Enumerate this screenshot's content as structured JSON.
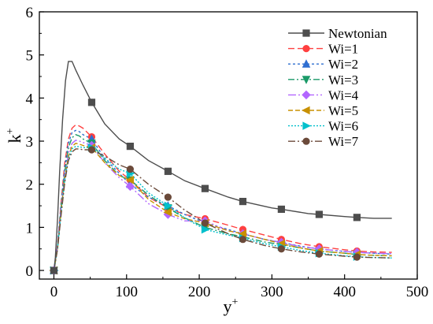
{
  "chart_data": {
    "type": "line",
    "title": "",
    "xlabel": "y",
    "xlabel_sup": "+",
    "ylabel": "k",
    "ylabel_sup": "+",
    "xlim": [
      -20,
      500
    ],
    "ylim": [
      -0.2,
      6
    ],
    "xticks": [
      0,
      100,
      200,
      300,
      400,
      500
    ],
    "yticks": [
      0,
      1,
      2,
      3,
      4,
      5,
      6
    ],
    "xtick_labels": [
      "0",
      "100",
      "200",
      "300",
      "400",
      "500"
    ],
    "ytick_labels": [
      "0",
      "1",
      "2",
      "3",
      "4",
      "5",
      "6"
    ],
    "grid": false,
    "legend_position": "top-right",
    "series": [
      {
        "name": "Newtonian",
        "color": "#4d4d4d",
        "dash": "solid",
        "marker": "square",
        "x": [
          0,
          2,
          5,
          8,
          12,
          16,
          20,
          25,
          30,
          40,
          52,
          70,
          90,
          105,
          130,
          157,
          180,
          208,
          240,
          260,
          300,
          313,
          350,
          365,
          400,
          417,
          440,
          465
        ],
        "y": [
          0,
          0.3,
          1.2,
          2.3,
          3.5,
          4.4,
          4.85,
          4.85,
          4.65,
          4.3,
          3.9,
          3.4,
          3.05,
          2.88,
          2.55,
          2.3,
          2.08,
          1.9,
          1.7,
          1.6,
          1.45,
          1.42,
          1.32,
          1.3,
          1.25,
          1.23,
          1.21,
          1.21
        ],
        "marker_x": [
          0,
          52,
          105,
          157,
          208,
          260,
          313,
          365,
          417
        ],
        "marker_y": [
          0,
          3.9,
          2.88,
          2.3,
          1.9,
          1.6,
          1.42,
          1.3,
          1.23
        ]
      },
      {
        "name": "Wi=1",
        "color": "#ff4040",
        "dash": "8 4",
        "marker": "circle",
        "x": [
          0,
          5,
          10,
          15,
          20,
          25,
          30,
          35,
          40,
          52,
          70,
          90,
          105,
          130,
          157,
          180,
          208,
          240,
          260,
          290,
          313,
          340,
          365,
          400,
          417,
          440,
          465
        ],
        "y": [
          0,
          0.6,
          1.6,
          2.5,
          3.05,
          3.3,
          3.38,
          3.35,
          3.3,
          3.1,
          2.7,
          2.3,
          2.1,
          1.7,
          1.45,
          1.3,
          1.2,
          1.05,
          0.95,
          0.82,
          0.72,
          0.62,
          0.55,
          0.48,
          0.45,
          0.43,
          0.42
        ],
        "marker_x": [
          0,
          52,
          105,
          157,
          208,
          260,
          313,
          365,
          417
        ],
        "marker_y": [
          0,
          3.1,
          2.1,
          1.45,
          1.2,
          0.95,
          0.72,
          0.55,
          0.45
        ]
      },
      {
        "name": "Wi=2",
        "color": "#2f6fd1",
        "dash": "3 3",
        "marker": "triangle-up",
        "x": [
          0,
          5,
          10,
          15,
          20,
          25,
          30,
          35,
          40,
          52,
          70,
          90,
          105,
          130,
          157,
          180,
          208,
          240,
          260,
          290,
          313,
          340,
          365,
          400,
          417,
          440,
          465
        ],
        "y": [
          0,
          0.6,
          1.55,
          2.4,
          2.95,
          3.2,
          3.25,
          3.22,
          3.15,
          3.05,
          2.6,
          2.25,
          2.0,
          1.7,
          1.5,
          1.3,
          1.1,
          0.95,
          0.85,
          0.72,
          0.65,
          0.56,
          0.5,
          0.44,
          0.42,
          0.4,
          0.38
        ],
        "marker_x": [
          0,
          52,
          105,
          157,
          208,
          260,
          313,
          365,
          417
        ],
        "marker_y": [
          0,
          3.05,
          2.0,
          1.5,
          1.1,
          0.85,
          0.65,
          0.5,
          0.42
        ]
      },
      {
        "name": "Wi=3",
        "color": "#1a9a68",
        "dash": "8 3 2 3",
        "marker": "triangle-down",
        "x": [
          0,
          5,
          10,
          15,
          20,
          25,
          30,
          35,
          40,
          52,
          70,
          90,
          105,
          130,
          157,
          180,
          208,
          240,
          260,
          290,
          313,
          340,
          365,
          400,
          417,
          440,
          465
        ],
        "y": [
          0,
          0.55,
          1.5,
          2.3,
          2.85,
          3.08,
          3.15,
          3.12,
          3.05,
          2.95,
          2.55,
          2.2,
          2.1,
          1.75,
          1.45,
          1.22,
          1.0,
          0.85,
          0.78,
          0.66,
          0.6,
          0.52,
          0.45,
          0.4,
          0.37,
          0.35,
          0.34
        ],
        "marker_x": [
          0,
          52,
          105,
          157,
          208,
          260,
          313,
          365,
          417
        ],
        "marker_y": [
          0,
          2.95,
          2.1,
          1.45,
          1.0,
          0.78,
          0.6,
          0.45,
          0.37
        ]
      },
      {
        "name": "Wi=4",
        "color": "#b266ff",
        "dash": "10 3 2 3 2 3",
        "marker": "diamond",
        "x": [
          0,
          5,
          10,
          15,
          20,
          25,
          30,
          35,
          40,
          52,
          70,
          90,
          105,
          130,
          157,
          180,
          208,
          240,
          260,
          290,
          313,
          340,
          365,
          400,
          417,
          440,
          465
        ],
        "y": [
          0,
          0.55,
          1.45,
          2.2,
          2.72,
          2.95,
          3.02,
          3.0,
          2.97,
          2.9,
          2.5,
          2.15,
          1.95,
          1.55,
          1.3,
          1.15,
          1.15,
          0.92,
          0.85,
          0.72,
          0.65,
          0.55,
          0.5,
          0.44,
          0.42,
          0.4,
          0.39
        ],
        "marker_x": [
          0,
          52,
          105,
          157,
          208,
          260,
          313,
          365,
          417
        ],
        "marker_y": [
          0,
          2.9,
          1.95,
          1.3,
          1.15,
          0.85,
          0.65,
          0.5,
          0.42
        ]
      },
      {
        "name": "Wi=5",
        "color": "#c89000",
        "dash": "6 3",
        "marker": "triangle-left",
        "x": [
          0,
          5,
          10,
          15,
          20,
          25,
          30,
          35,
          40,
          52,
          70,
          90,
          105,
          130,
          157,
          180,
          208,
          240,
          260,
          290,
          313,
          340,
          365,
          400,
          417,
          440,
          465
        ],
        "y": [
          0,
          0.5,
          1.4,
          2.15,
          2.65,
          2.88,
          2.95,
          2.93,
          2.9,
          2.85,
          2.5,
          2.2,
          2.1,
          1.65,
          1.35,
          1.2,
          1.1,
          0.92,
          0.85,
          0.72,
          0.62,
          0.52,
          0.45,
          0.4,
          0.37,
          0.35,
          0.34
        ],
        "marker_x": [
          0,
          52,
          105,
          157,
          208,
          260,
          313,
          365,
          417
        ],
        "marker_y": [
          0,
          2.85,
          2.1,
          1.35,
          1.1,
          0.85,
          0.62,
          0.45,
          0.37
        ]
      },
      {
        "name": "Wi=6",
        "color": "#00c0cc",
        "dash": "2 2",
        "marker": "triangle-right",
        "x": [
          0,
          5,
          10,
          15,
          20,
          25,
          30,
          35,
          40,
          52,
          70,
          90,
          105,
          130,
          157,
          180,
          208,
          240,
          260,
          290,
          313,
          340,
          365,
          400,
          417,
          440,
          465
        ],
        "y": [
          0,
          0.5,
          1.35,
          2.1,
          2.6,
          2.82,
          2.88,
          2.87,
          2.85,
          2.85,
          2.6,
          2.35,
          2.25,
          1.8,
          1.5,
          1.22,
          0.95,
          0.82,
          0.75,
          0.62,
          0.55,
          0.46,
          0.4,
          0.34,
          0.32,
          0.3,
          0.29
        ],
        "marker_x": [
          0,
          52,
          105,
          157,
          208,
          260,
          313,
          365,
          417
        ],
        "marker_y": [
          0,
          2.85,
          2.25,
          1.5,
          0.95,
          0.75,
          0.55,
          0.4,
          0.32
        ]
      },
      {
        "name": "Wi=7",
        "color": "#6b4a3a",
        "dash": "9 3 2 3",
        "marker": "circle",
        "x": [
          0,
          5,
          10,
          15,
          20,
          25,
          30,
          35,
          40,
          52,
          70,
          90,
          105,
          130,
          157,
          180,
          208,
          240,
          260,
          290,
          313,
          340,
          365,
          400,
          417,
          440,
          465
        ],
        "y": [
          0,
          0.5,
          1.3,
          2.05,
          2.55,
          2.75,
          2.82,
          2.82,
          2.8,
          2.8,
          2.65,
          2.45,
          2.35,
          2.0,
          1.7,
          1.4,
          1.1,
          0.85,
          0.72,
          0.58,
          0.5,
          0.43,
          0.38,
          0.33,
          0.31,
          0.3,
          0.29
        ],
        "marker_x": [
          0,
          52,
          105,
          157,
          208,
          260,
          313,
          365,
          417
        ],
        "marker_y": [
          0,
          2.8,
          2.35,
          1.7,
          1.1,
          0.72,
          0.5,
          0.38,
          0.31
        ]
      }
    ]
  }
}
